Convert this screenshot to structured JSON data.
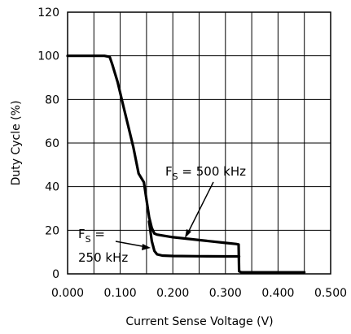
{
  "chart_data": {
    "type": "line",
    "xlabel": "Current Sense Voltage (V)",
    "ylabel": "Duty Cycle (%)",
    "xlim": [
      0.0,
      0.5
    ],
    "ylim": [
      0,
      120
    ],
    "xticks": [
      0.0,
      0.1,
      0.2,
      0.3,
      0.4,
      0.5
    ],
    "xtick_labels": [
      "0.000",
      "0.100",
      "0.200",
      "0.300",
      "0.400",
      "0.500"
    ],
    "yticks": [
      0,
      20,
      40,
      60,
      80,
      100,
      120
    ],
    "ytick_labels": [
      "0",
      "20",
      "40",
      "60",
      "80",
      "100",
      "120"
    ],
    "grid": true,
    "series": [
      {
        "name": "F_S = 500 kHz",
        "x": [
          0.0,
          0.02,
          0.05,
          0.07,
          0.08,
          0.085,
          0.095,
          0.105,
          0.115,
          0.125,
          0.135,
          0.145,
          0.15,
          0.155,
          0.16,
          0.165,
          0.17,
          0.2,
          0.25,
          0.3,
          0.32,
          0.325,
          0.326,
          0.33,
          0.45
        ],
        "y": [
          100,
          100,
          100,
          100,
          99.5,
          96,
          88,
          78,
          68,
          58,
          46,
          42,
          34,
          26,
          21,
          18.5,
          18,
          16.8,
          15.5,
          14.2,
          13.7,
          13.5,
          1.2,
          0.7,
          0.7
        ]
      },
      {
        "name": "F_S = 250 kHz",
        "x": [
          0.155,
          0.16,
          0.165,
          0.17,
          0.18,
          0.2,
          0.25,
          0.3,
          0.326
        ],
        "y": [
          24,
          15,
          10.5,
          9,
          8.4,
          8.2,
          8.1,
          8.0,
          8.0
        ]
      }
    ],
    "annotations": [
      {
        "main": "F",
        "sub": "S",
        "text": " = 500 kHz"
      },
      {
        "main": "F",
        "sub": "S",
        "text": " =",
        "line2": "250 kHz"
      }
    ]
  }
}
